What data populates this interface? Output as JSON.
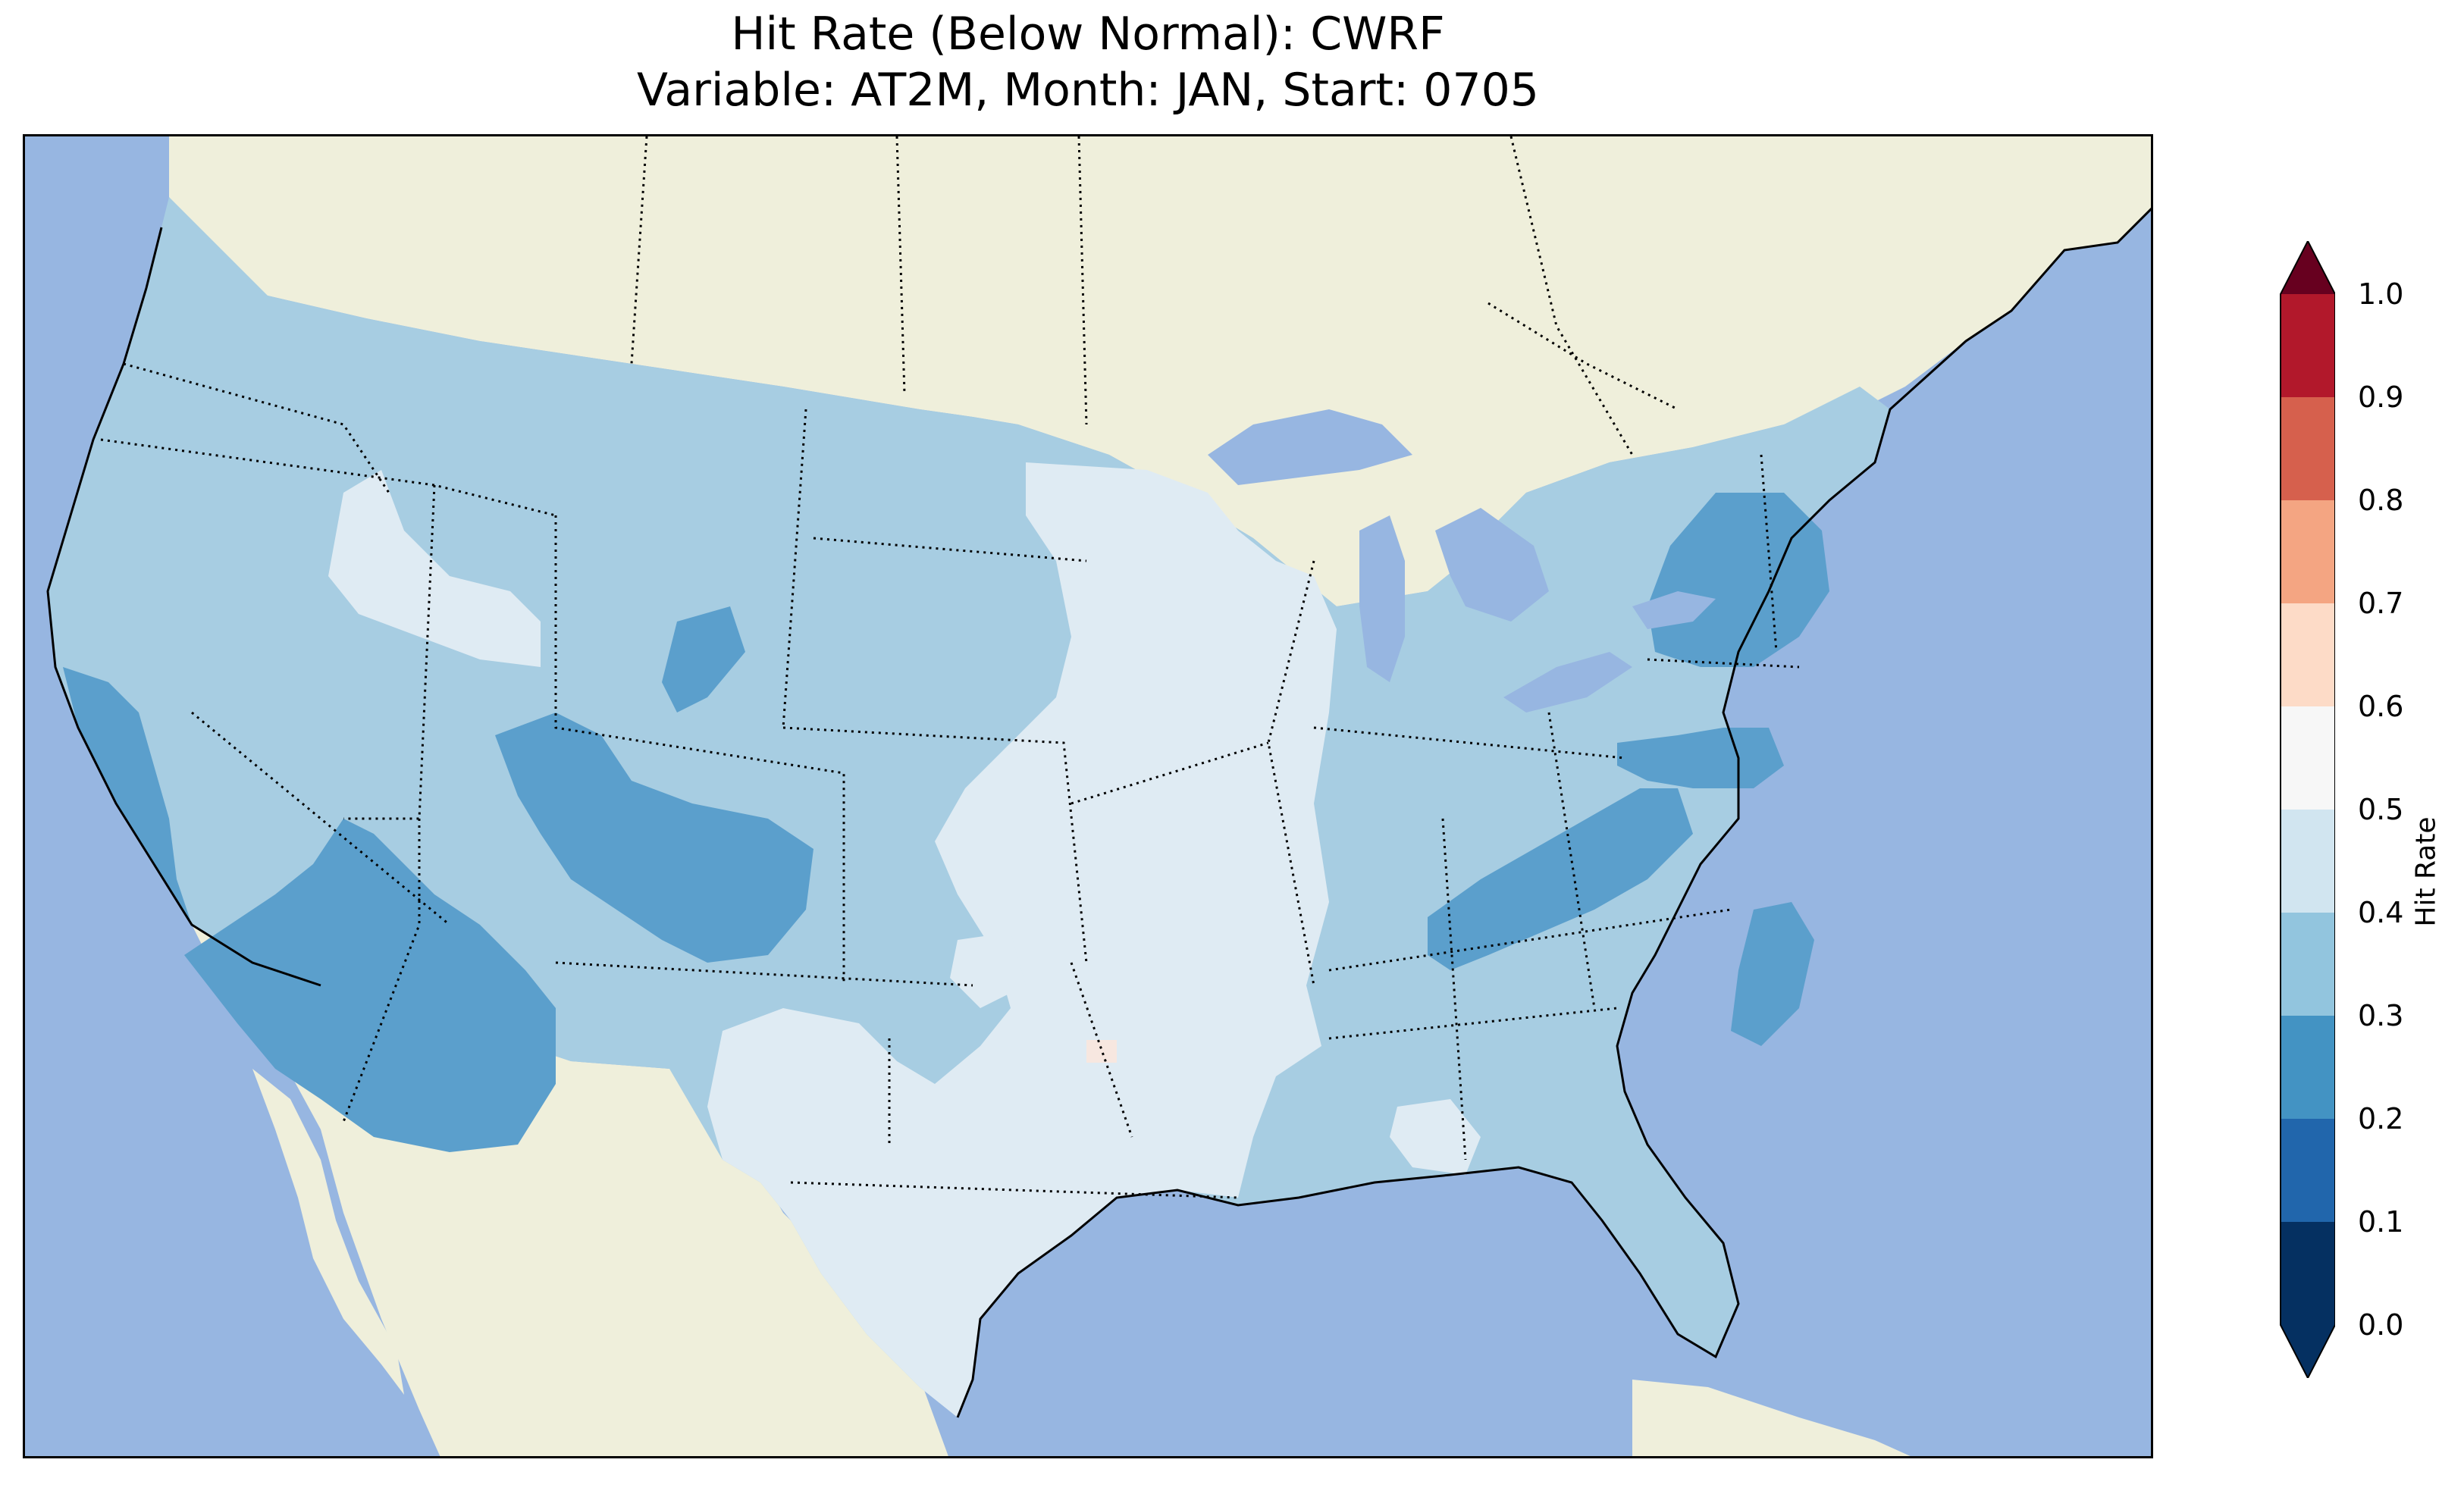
{
  "title": {
    "line1": "Hit Rate (Below Normal): CWRF",
    "line2": "Variable: AT2M, Month: JAN, Start: 0705"
  },
  "colorbar": {
    "label": "Hit Rate",
    "ticks": [
      "0.0",
      "0.1",
      "0.2",
      "0.3",
      "0.4",
      "0.5",
      "0.6",
      "0.7",
      "0.8",
      "0.9",
      "1.0"
    ],
    "bins": [
      {
        "range": [
          0.0,
          0.1
        ],
        "color": "#053061"
      },
      {
        "range": [
          0.1,
          0.2
        ],
        "color": "#2166ac"
      },
      {
        "range": [
          0.2,
          0.3
        ],
        "color": "#4393c3"
      },
      {
        "range": [
          0.3,
          0.4
        ],
        "color": "#92c5de"
      },
      {
        "range": [
          0.4,
          0.5
        ],
        "color": "#d1e5f0"
      },
      {
        "range": [
          0.5,
          0.6
        ],
        "color": "#f7f7f7"
      },
      {
        "range": [
          0.6,
          0.7
        ],
        "color": "#fddbc7"
      },
      {
        "range": [
          0.7,
          0.8
        ],
        "color": "#f4a582"
      },
      {
        "range": [
          0.8,
          0.9
        ],
        "color": "#d6604d"
      },
      {
        "range": [
          0.9,
          1.0
        ],
        "color": "#b2182b"
      }
    ],
    "under_color": "#053061",
    "over_color": "#67001f",
    "extend": "both"
  },
  "map_colors": {
    "ocean": "#97b6e1",
    "land": "#efefdb",
    "band_0_2_0_3": "#5b9fcc",
    "band_0_3_0_4": "#a7cde2",
    "band_0_4_0_5": "#dfebf3",
    "band_0_5_0_6": "#f7e7e0"
  }
}
